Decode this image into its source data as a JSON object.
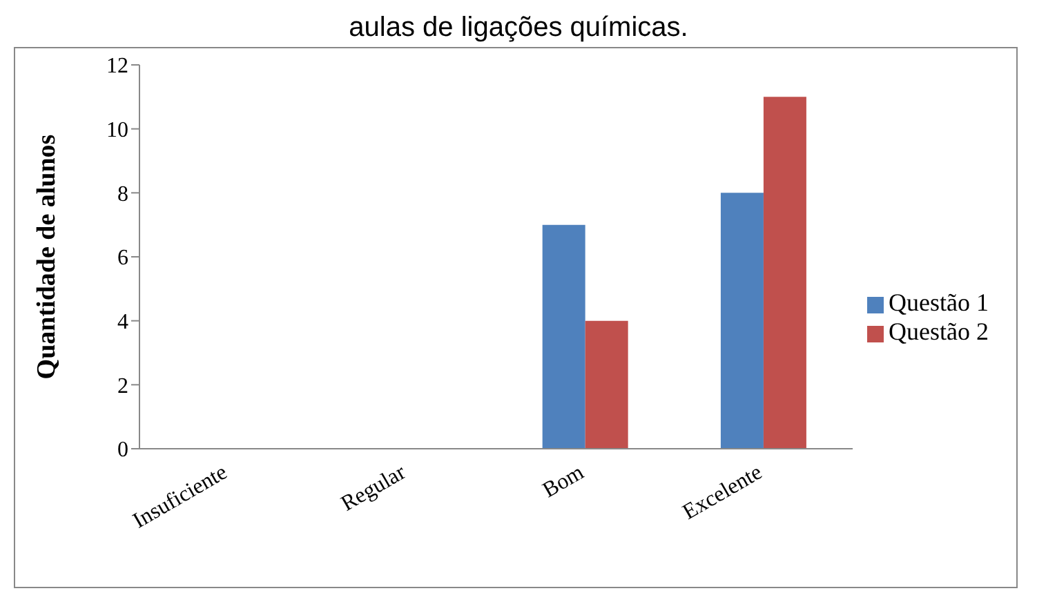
{
  "chart_data": {
    "type": "bar",
    "title": "aulas de ligações químicas.",
    "ylabel": "Quantidade de alunos",
    "categories": [
      "Insuficiente",
      "Regular",
      "Bom",
      "Excelente"
    ],
    "series": [
      {
        "name": "Questão 1",
        "color": "#4f81bd",
        "values": [
          0,
          0,
          7,
          8
        ]
      },
      {
        "name": "Questão 2",
        "color": "#c0504d",
        "values": [
          0,
          0,
          4,
          11
        ]
      }
    ],
    "ylim": [
      0,
      12
    ],
    "yticks": [
      0,
      2,
      4,
      6,
      8,
      10,
      12
    ],
    "grid": false,
    "legend": "right"
  }
}
